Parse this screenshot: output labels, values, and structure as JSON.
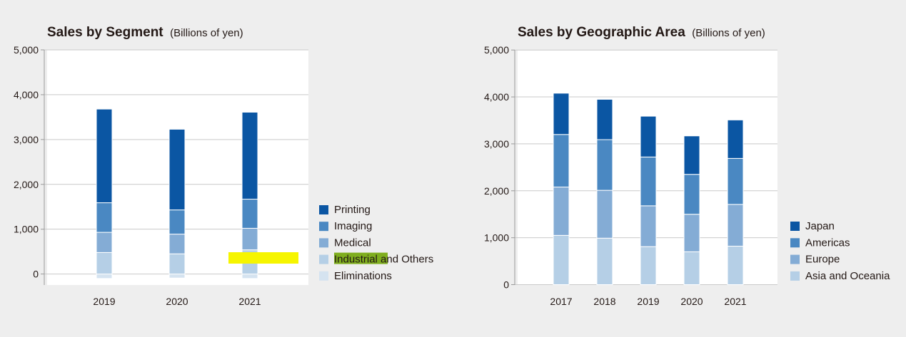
{
  "chart_data": [
    {
      "type": "bar",
      "stacked": true,
      "title": "Sales by Segment",
      "subtitle": "(Billions of yen)",
      "categories": [
        "2019",
        "2020",
        "2021"
      ],
      "ylim": [
        -200,
        5000
      ],
      "yticks": [
        0,
        1000,
        2000,
        3000,
        4000,
        5000
      ],
      "ytick_labels": [
        "0",
        "1,000",
        "2,000",
        "3,000",
        "4,000",
        "5,000"
      ],
      "grid": true,
      "legend_position": "right",
      "series": [
        {
          "name": "Eliminations",
          "color": "#d5e3f0",
          "values": [
            -100,
            -90,
            -100
          ]
        },
        {
          "name": "Industrial and Others",
          "color": "#b5cfe6",
          "values": [
            480,
            450,
            540
          ]
        },
        {
          "name": "Medical",
          "color": "#84acd5",
          "values": [
            450,
            440,
            480
          ]
        },
        {
          "name": "Imaging",
          "color": "#4a88c2",
          "values": [
            660,
            540,
            650
          ]
        },
        {
          "name": "Printing",
          "color": "#0b56a3",
          "values": [
            2090,
            1800,
            1940
          ]
        }
      ],
      "legend_order": [
        "Printing",
        "Imaging",
        "Medical",
        "Industrial and Others",
        "Eliminations"
      ],
      "highlight_color": "#f6f500",
      "legend_highlight_color": "#7fae1e"
    },
    {
      "type": "bar",
      "stacked": true,
      "title": "Sales by Geographic Area",
      "subtitle": "(Billions of yen)",
      "categories": [
        "2017",
        "2018",
        "2019",
        "2020",
        "2021"
      ],
      "ylim": [
        0,
        5000
      ],
      "yticks": [
        0,
        1000,
        2000,
        3000,
        4000,
        5000
      ],
      "ytick_labels": [
        "0",
        "1,000",
        "2,000",
        "3,000",
        "4,000",
        "5,000"
      ],
      "grid": true,
      "legend_position": "right",
      "series": [
        {
          "name": "Asia and Oceania",
          "color": "#b5cfe6",
          "values": [
            1050,
            990,
            810,
            700,
            820
          ]
        },
        {
          "name": "Europe",
          "color": "#84acd5",
          "values": [
            1030,
            1020,
            870,
            800,
            890
          ]
        },
        {
          "name": "Americas",
          "color": "#4a88c2",
          "values": [
            1120,
            1080,
            1040,
            850,
            980
          ]
        },
        {
          "name": "Japan",
          "color": "#0b56a3",
          "values": [
            880,
            860,
            870,
            820,
            820
          ]
        }
      ],
      "legend_order": [
        "Japan",
        "Americas",
        "Europe",
        "Asia and Oceania"
      ]
    }
  ]
}
